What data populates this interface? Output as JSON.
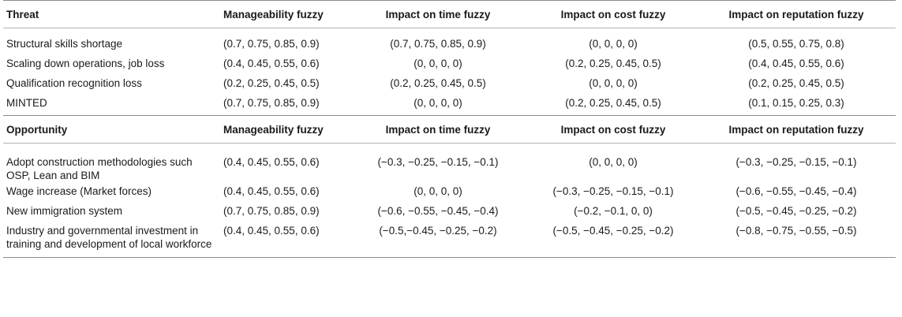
{
  "threat_section": {
    "headers": [
      "Threat",
      "Manageability fuzzy",
      "Impact on time fuzzy",
      "Impact on cost fuzzy",
      "Impact on reputation fuzzy"
    ],
    "rows": [
      [
        "Structural skills shortage",
        "(0.7, 0.75, 0.85, 0.9)",
        "(0.7, 0.75, 0.85, 0.9)",
        "(0, 0, 0, 0)",
        "(0.5, 0.55, 0.75, 0.8)"
      ],
      [
        "Scaling down operations, job loss",
        "(0.4, 0.45, 0.55, 0.6)",
        "(0, 0, 0, 0)",
        "(0.2, 0.25, 0.45, 0.5)",
        "(0.4, 0.45, 0.55, 0.6)"
      ],
      [
        "Qualification recognition loss",
        "(0.2, 0.25, 0.45, 0.5)",
        "(0.2, 0.25, 0.45, 0.5)",
        "(0, 0, 0, 0)",
        "(0.2, 0.25, 0.45, 0.5)"
      ],
      [
        "MINTED",
        "(0.7, 0.75, 0.85, 0.9)",
        "(0, 0, 0, 0)",
        "(0.2, 0.25, 0.45, 0.5)",
        "(0.1, 0.15, 0.25, 0.3)"
      ]
    ]
  },
  "opportunity_section": {
    "headers": [
      "Opportunity",
      "Manageability fuzzy",
      "Impact on time fuzzy",
      "Impact on cost fuzzy",
      "Impact on reputation fuzzy"
    ],
    "rows": [
      [
        "Adopt construction methodologies such OSP, Lean and BIM",
        "(0.4, 0.45, 0.55, 0.6)",
        "(−0.3, −0.25, −0.15, −0.1)",
        "(0, 0, 0, 0)",
        "(−0.3, −0.25, −0.15, −0.1)"
      ],
      [
        "Wage increase (Market forces)",
        "(0.4, 0.45, 0.55, 0.6)",
        "(0, 0, 0, 0)",
        "(−0.3, −0.25, −0.15, −0.1)",
        "(−0.6, −0.55, −0.45, −0.4)"
      ],
      [
        "New immigration system",
        "(0.7, 0.75, 0.85, 0.9)",
        "(−0.6, −0.55, −0.45, −0.4)",
        "(−0.2, −0.1, 0, 0)",
        "(−0.5, −0.45, −0.25, −0.2)"
      ],
      [
        "Industry and governmental investment in training and development of local workforce",
        "(0.4, 0.45, 0.55, 0.6)",
        "(−0.5,−0.45, −0.25, −0.2)",
        "(−0.5, −0.45, −0.25, −0.2)",
        "(−0.8, −0.75, −0.55, −0.5)"
      ]
    ]
  }
}
